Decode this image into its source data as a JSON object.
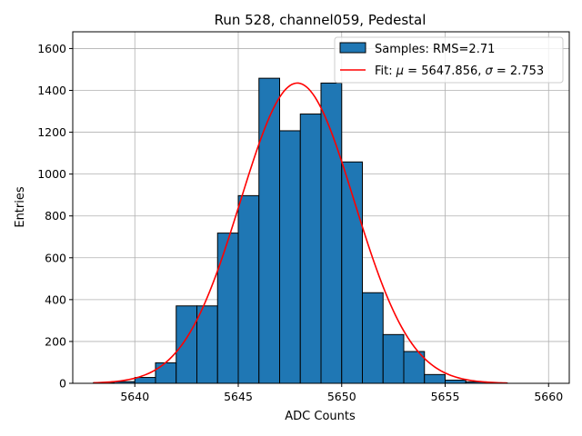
{
  "chart_data": {
    "type": "bar",
    "title": "Run 528, channel059, Pedestal",
    "xlabel": "ADC Counts",
    "ylabel": "Entries",
    "xlim": [
      5637.0,
      5661.0
    ],
    "ylim": [
      0,
      1680
    ],
    "xticks": [
      5640,
      5645,
      5650,
      5655,
      5660
    ],
    "yticks": [
      0,
      200,
      400,
      600,
      800,
      1000,
      1200,
      1400,
      1600
    ],
    "grid": true,
    "legend_position": "top-right",
    "histogram": {
      "name": "Samples: RMS=2.71",
      "color": "#1f77b4",
      "edgecolor": "#000000",
      "bins": [
        {
          "x0": 5638,
          "x1": 5639,
          "value": 3
        },
        {
          "x0": 5639,
          "x1": 5640,
          "value": 8
        },
        {
          "x0": 5640,
          "x1": 5641,
          "value": 28
        },
        {
          "x0": 5641,
          "x1": 5642,
          "value": 98
        },
        {
          "x0": 5642,
          "x1": 5643,
          "value": 370
        },
        {
          "x0": 5643,
          "x1": 5644,
          "value": 370
        },
        {
          "x0": 5644,
          "x1": 5645,
          "value": 718
        },
        {
          "x0": 5645,
          "x1": 5646,
          "value": 897
        },
        {
          "x0": 5646,
          "x1": 5647,
          "value": 1458
        },
        {
          "x0": 5647,
          "x1": 5648,
          "value": 1207
        },
        {
          "x0": 5648,
          "x1": 5649,
          "value": 1287
        },
        {
          "x0": 5649,
          "x1": 5650,
          "value": 1435
        },
        {
          "x0": 5650,
          "x1": 5651,
          "value": 1058
        },
        {
          "x0": 5651,
          "x1": 5652,
          "value": 433
        },
        {
          "x0": 5652,
          "x1": 5653,
          "value": 233
        },
        {
          "x0": 5653,
          "x1": 5654,
          "value": 152
        },
        {
          "x0": 5654,
          "x1": 5655,
          "value": 42
        },
        {
          "x0": 5655,
          "x1": 5656,
          "value": 15
        },
        {
          "x0": 5656,
          "x1": 5657,
          "value": 7
        },
        {
          "x0": 5657,
          "x1": 5658,
          "value": 2
        }
      ]
    },
    "fit": {
      "name_prefix": "Fit: ",
      "mu_symbol": "μ",
      "mu_text": " = 5647.856, ",
      "sigma_symbol": "σ",
      "sigma_text": " = 2.753",
      "color": "#ff0000",
      "mu": 5647.856,
      "sigma": 2.753,
      "amplitude": 1435,
      "x_range": [
        5638,
        5658
      ]
    }
  }
}
